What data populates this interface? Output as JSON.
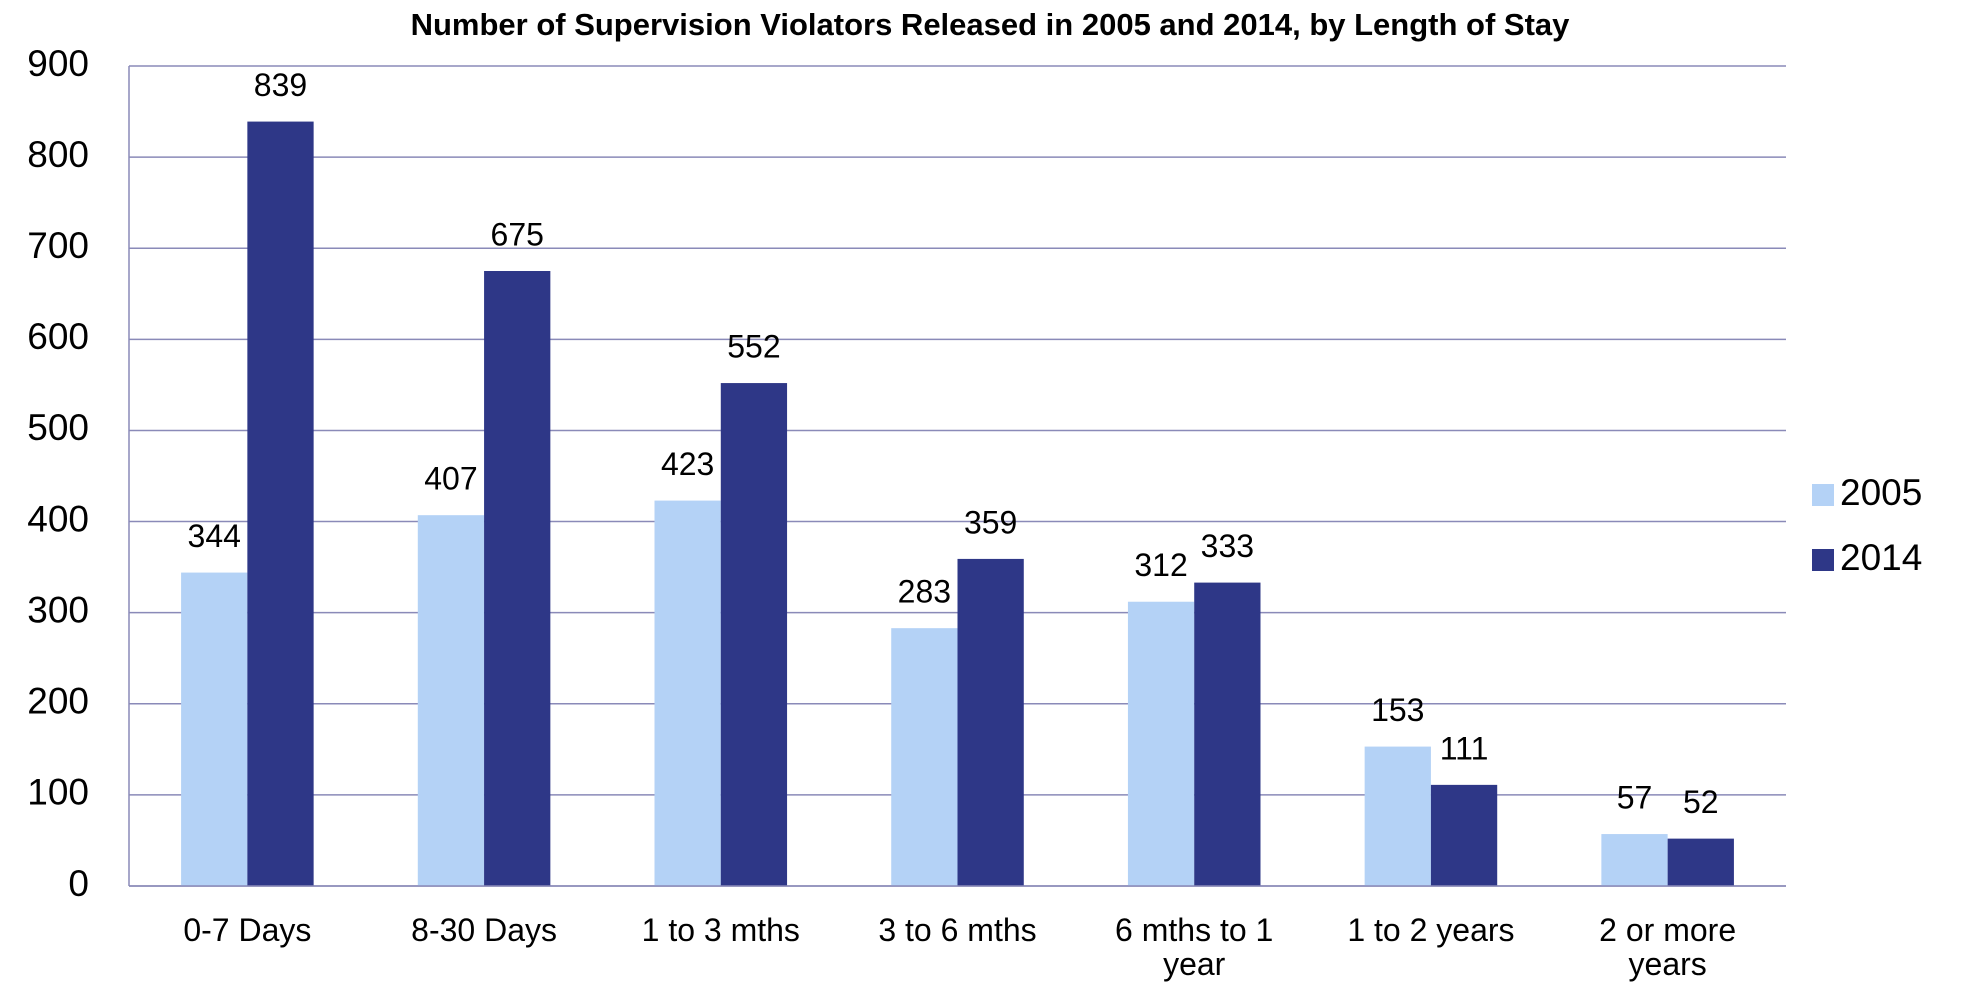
{
  "chart_data": {
    "type": "bar",
    "title": "Number of Supervision Violators Released in 2005 and 2014, by Length of Stay",
    "categories": [
      "0-7 Days",
      "8-30 Days",
      "1 to 3 mths",
      "3 to 6 mths",
      "6 mths to 1 year",
      "1 to 2 years",
      "2 or more years"
    ],
    "series": [
      {
        "name": "2005",
        "color": "#b4d2f6",
        "values": [
          344,
          407,
          423,
          283,
          312,
          153,
          57
        ]
      },
      {
        "name": "2014",
        "color": "#2e3787",
        "values": [
          839,
          675,
          552,
          359,
          333,
          111,
          52
        ]
      }
    ],
    "ylim": [
      0,
      900
    ],
    "yticks": [
      0,
      100,
      200,
      300,
      400,
      500,
      600,
      700,
      800,
      900
    ],
    "grid": true,
    "legend": "right"
  }
}
